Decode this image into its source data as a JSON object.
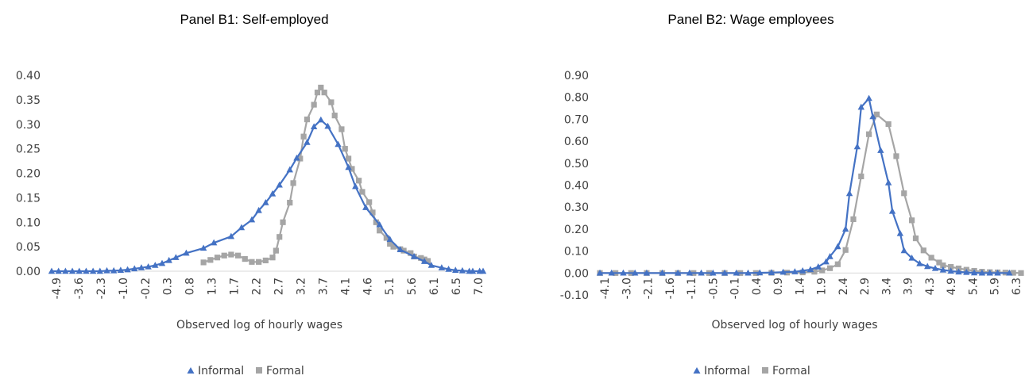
{
  "colors": {
    "informal": "#4472C4",
    "formal": "#A5A5A5",
    "axis": "#D9D9D9",
    "text": "#404040"
  },
  "chart_data": [
    {
      "type": "line",
      "title": "Panel B1: Self-employed",
      "xlabel": "Observed log of hourly wages",
      "ylabel": "",
      "ylim": [
        0,
        0.4
      ],
      "yticks": [
        "0.00",
        "0.05",
        "0.10",
        "0.15",
        "0.20",
        "0.25",
        "0.30",
        "0.35",
        "0.40"
      ],
      "xticks": [
        "-4.9",
        "-3.6",
        "-2.3",
        "-1.0",
        "-0.2",
        "0.3",
        "0.8",
        "1.3",
        "1.7",
        "2.2",
        "2.7",
        "3.2",
        "3.7",
        "4.1",
        "4.6",
        "5.1",
        "5.6",
        "6.1",
        "6.5",
        "7.0"
      ],
      "legend": "bottom",
      "series": [
        {
          "name": "Informal",
          "marker": "triangle",
          "points": [
            [
              -4.9,
              0.0
            ],
            [
              -4.7,
              0.0
            ],
            [
              -4.5,
              0.0
            ],
            [
              -4.3,
              0.0
            ],
            [
              -4.1,
              0.0
            ],
            [
              -3.9,
              0.0
            ],
            [
              -3.7,
              0.0
            ],
            [
              -3.5,
              0.0
            ],
            [
              -3.3,
              0.001
            ],
            [
              -3.1,
              0.001
            ],
            [
              -2.9,
              0.002
            ],
            [
              -2.7,
              0.003
            ],
            [
              -2.5,
              0.005
            ],
            [
              -2.3,
              0.007
            ],
            [
              -2.1,
              0.009
            ],
            [
              -1.9,
              0.012
            ],
            [
              -1.7,
              0.016
            ],
            [
              -1.5,
              0.022
            ],
            [
              -1.3,
              0.028
            ],
            [
              -1.0,
              0.037
            ],
            [
              -0.5,
              0.047
            ],
            [
              -0.2,
              0.058
            ],
            [
              0.3,
              0.071
            ],
            [
              0.6,
              0.089
            ],
            [
              0.9,
              0.105
            ],
            [
              1.1,
              0.124
            ],
            [
              1.3,
              0.14
            ],
            [
              1.5,
              0.158
            ],
            [
              1.7,
              0.176
            ],
            [
              2.0,
              0.207
            ],
            [
              2.2,
              0.231
            ],
            [
              2.5,
              0.263
            ],
            [
              2.7,
              0.295
            ],
            [
              2.9,
              0.309
            ],
            [
              3.1,
              0.296
            ],
            [
              3.4,
              0.259
            ],
            [
              3.7,
              0.212
            ],
            [
              3.9,
              0.173
            ],
            [
              4.2,
              0.13
            ],
            [
              4.6,
              0.095
            ],
            [
              4.9,
              0.065
            ],
            [
              5.2,
              0.044
            ],
            [
              5.6,
              0.03
            ],
            [
              5.9,
              0.02
            ],
            [
              6.1,
              0.012
            ],
            [
              6.4,
              0.007
            ],
            [
              6.6,
              0.004
            ],
            [
              6.8,
              0.002
            ],
            [
              7.0,
              0.001
            ],
            [
              7.2,
              0.0
            ],
            [
              7.3,
              0.0
            ],
            [
              7.5,
              0.0
            ],
            [
              7.6,
              0.0
            ]
          ]
        },
        {
          "name": "Formal",
          "marker": "square",
          "points": [
            [
              -0.5,
              0.018
            ],
            [
              -0.3,
              0.023
            ],
            [
              -0.1,
              0.028
            ],
            [
              0.1,
              0.032
            ],
            [
              0.3,
              0.034
            ],
            [
              0.5,
              0.032
            ],
            [
              0.7,
              0.025
            ],
            [
              0.9,
              0.019
            ],
            [
              1.1,
              0.019
            ],
            [
              1.3,
              0.022
            ],
            [
              1.5,
              0.028
            ],
            [
              1.6,
              0.042
            ],
            [
              1.7,
              0.07
            ],
            [
              1.8,
              0.1
            ],
            [
              2.0,
              0.14
            ],
            [
              2.1,
              0.18
            ],
            [
              2.3,
              0.23
            ],
            [
              2.4,
              0.275
            ],
            [
              2.5,
              0.31
            ],
            [
              2.7,
              0.34
            ],
            [
              2.8,
              0.365
            ],
            [
              2.9,
              0.375
            ],
            [
              3.0,
              0.365
            ],
            [
              3.2,
              0.345
            ],
            [
              3.3,
              0.318
            ],
            [
              3.5,
              0.29
            ],
            [
              3.6,
              0.25
            ],
            [
              3.7,
              0.23
            ],
            [
              3.8,
              0.209
            ],
            [
              4.0,
              0.185
            ],
            [
              4.1,
              0.162
            ],
            [
              4.3,
              0.141
            ],
            [
              4.4,
              0.12
            ],
            [
              4.5,
              0.1
            ],
            [
              4.6,
              0.083
            ],
            [
              4.8,
              0.068
            ],
            [
              4.9,
              0.056
            ],
            [
              5.0,
              0.05
            ],
            [
              5.2,
              0.045
            ],
            [
              5.3,
              0.042
            ],
            [
              5.5,
              0.037
            ],
            [
              5.6,
              0.03
            ],
            [
              5.8,
              0.027
            ],
            [
              5.9,
              0.024
            ],
            [
              6.0,
              0.021
            ]
          ]
        }
      ]
    },
    {
      "type": "line",
      "title": "Panel B2: Wage employees",
      "xlabel": "Observed log of hourly wages",
      "ylabel": "",
      "ylim": [
        -0.1,
        0.9
      ],
      "yticks": [
        "-0.10",
        "0.00",
        "0.10",
        "0.20",
        "0.30",
        "0.40",
        "0.50",
        "0.60",
        "0.70",
        "0.80",
        "0.90"
      ],
      "xticks": [
        "-4.1",
        "-3.0",
        "-2.1",
        "-1.6",
        "-1.1",
        "-0.5",
        "-0.1",
        "0.4",
        "0.9",
        "1.4",
        "1.9",
        "2.4",
        "2.9",
        "3.4",
        "3.9",
        "4.3",
        "4.9",
        "5.4",
        "5.9",
        "6.3"
      ],
      "legend": "bottom",
      "series": [
        {
          "name": "Informal",
          "marker": "triangle",
          "points": [
            [
              -4.1,
              0.0
            ],
            [
              -3.8,
              0.0
            ],
            [
              -3.5,
              0.0
            ],
            [
              -3.2,
              0.0
            ],
            [
              -2.9,
              0.0
            ],
            [
              -2.5,
              0.0
            ],
            [
              -2.1,
              0.0
            ],
            [
              -1.8,
              0.0
            ],
            [
              -1.5,
              0.0
            ],
            [
              -1.2,
              0.0
            ],
            [
              -0.9,
              0.0
            ],
            [
              -0.6,
              0.0
            ],
            [
              -0.3,
              0.0
            ],
            [
              0.0,
              0.001
            ],
            [
              0.3,
              0.002
            ],
            [
              0.6,
              0.004
            ],
            [
              0.9,
              0.006
            ],
            [
              1.1,
              0.01
            ],
            [
              1.3,
              0.016
            ],
            [
              1.5,
              0.028
            ],
            [
              1.7,
              0.051
            ],
            [
              1.8,
              0.075
            ],
            [
              2.0,
              0.12
            ],
            [
              2.2,
              0.2
            ],
            [
              2.3,
              0.362
            ],
            [
              2.5,
              0.575
            ],
            [
              2.6,
              0.755
            ],
            [
              2.8,
              0.795
            ],
            [
              2.9,
              0.712
            ],
            [
              3.1,
              0.558
            ],
            [
              3.3,
              0.411
            ],
            [
              3.4,
              0.281
            ],
            [
              3.6,
              0.18
            ],
            [
              3.7,
              0.102
            ],
            [
              3.9,
              0.068
            ],
            [
              4.1,
              0.043
            ],
            [
              4.3,
              0.03
            ],
            [
              4.5,
              0.021
            ],
            [
              4.7,
              0.014
            ],
            [
              4.9,
              0.009
            ],
            [
              5.1,
              0.005
            ],
            [
              5.3,
              0.003
            ],
            [
              5.5,
              0.001
            ],
            [
              5.7,
              0.0
            ],
            [
              5.9,
              0.0
            ],
            [
              6.1,
              0.0
            ],
            [
              6.4,
              0.0
            ]
          ]
        },
        {
          "name": "Formal",
          "marker": "square",
          "points": [
            [
              -4.1,
              0.0
            ],
            [
              -3.7,
              0.0
            ],
            [
              -3.3,
              0.0
            ],
            [
              -2.9,
              0.0
            ],
            [
              -2.5,
              0.0
            ],
            [
              -2.1,
              0.0
            ],
            [
              -1.7,
              0.0
            ],
            [
              -1.3,
              0.0
            ],
            [
              -0.9,
              0.0
            ],
            [
              -0.5,
              0.0
            ],
            [
              -0.1,
              0.0
            ],
            [
              0.3,
              0.001
            ],
            [
              0.7,
              0.002
            ],
            [
              1.1,
              0.003
            ],
            [
              1.4,
              0.006
            ],
            [
              1.6,
              0.012
            ],
            [
              1.8,
              0.022
            ],
            [
              2.0,
              0.04
            ],
            [
              2.2,
              0.105
            ],
            [
              2.4,
              0.245
            ],
            [
              2.6,
              0.44
            ],
            [
              2.8,
              0.632
            ],
            [
              3.0,
              0.722
            ],
            [
              3.3,
              0.678
            ],
            [
              3.5,
              0.532
            ],
            [
              3.7,
              0.363
            ],
            [
              3.9,
              0.24
            ],
            [
              4.0,
              0.158
            ],
            [
              4.2,
              0.103
            ],
            [
              4.4,
              0.07
            ],
            [
              4.6,
              0.048
            ],
            [
              4.7,
              0.035
            ],
            [
              4.9,
              0.028
            ],
            [
              5.1,
              0.021
            ],
            [
              5.3,
              0.015
            ],
            [
              5.5,
              0.01
            ],
            [
              5.7,
              0.006
            ],
            [
              5.9,
              0.004
            ],
            [
              6.1,
              0.003
            ],
            [
              6.3,
              0.002
            ],
            [
              6.5,
              0.001
            ],
            [
              6.7,
              0.0
            ]
          ]
        }
      ]
    }
  ]
}
